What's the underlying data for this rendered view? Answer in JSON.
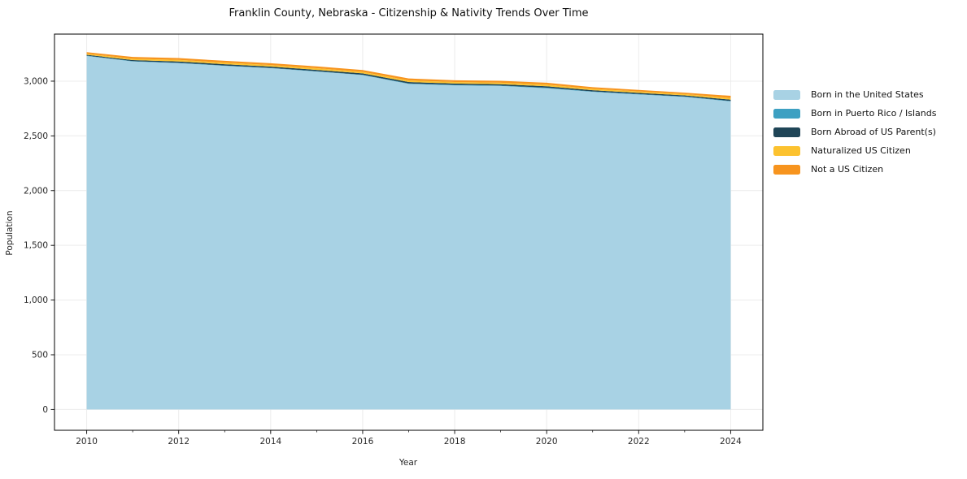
{
  "title": "Franklin County, Nebraska - Citizenship & Nativity Trends Over Time",
  "chart_data": {
    "type": "area",
    "stacked": true,
    "title": "Franklin County, Nebraska - Citizenship & Nativity Trends Over Time",
    "xlabel": "Year",
    "ylabel": "Population",
    "x": [
      2010,
      2011,
      2012,
      2013,
      2014,
      2015,
      2016,
      2017,
      2018,
      2019,
      2020,
      2021,
      2022,
      2023,
      2024
    ],
    "series": [
      {
        "name": "Born in the United States",
        "color": "#a8d2e4",
        "values": [
          3230,
          3180,
          3165,
          3140,
          3118,
          3088,
          3055,
          2975,
          2962,
          2956,
          2935,
          2902,
          2878,
          2856,
          2815
        ]
      },
      {
        "name": "Born in Puerto Rico / Islands",
        "color": "#3da0c2",
        "values": [
          3,
          3,
          3,
          3,
          3,
          3,
          3,
          4,
          4,
          4,
          5,
          4,
          4,
          4,
          4
        ]
      },
      {
        "name": "Born Abroad of US Parent(s)",
        "color": "#1f4557",
        "values": [
          8,
          10,
          12,
          12,
          12,
          12,
          13,
          13,
          12,
          12,
          13,
          11,
          11,
          10,
          12
        ]
      },
      {
        "name": "Naturalized US Citizen",
        "color": "#fcc22f",
        "values": [
          10,
          12,
          14,
          14,
          14,
          15,
          14,
          15,
          14,
          14,
          15,
          13,
          13,
          12,
          15
        ]
      },
      {
        "name": "Not a US Citizen",
        "color": "#f7941e",
        "values": [
          14,
          16,
          17,
          17,
          17,
          17,
          17,
          18,
          16,
          17,
          18,
          15,
          14,
          13,
          20
        ]
      }
    ],
    "xticks": [
      2010,
      2012,
      2014,
      2016,
      2018,
      2020,
      2022,
      2024
    ],
    "xticks_minor": [
      2011,
      2013,
      2015,
      2017,
      2019,
      2021,
      2023
    ],
    "yticks": [
      0,
      500,
      1000,
      1500,
      2000,
      2500,
      3000
    ],
    "xlim": [
      2009.3,
      2024.7
    ],
    "ylim": [
      -190,
      3430
    ],
    "grid": true,
    "legend_position": "right",
    "style": {
      "grid_color": "#ececec",
      "spine_color": "#000000",
      "tick_color": "#000000",
      "background": "#ffffff"
    }
  }
}
